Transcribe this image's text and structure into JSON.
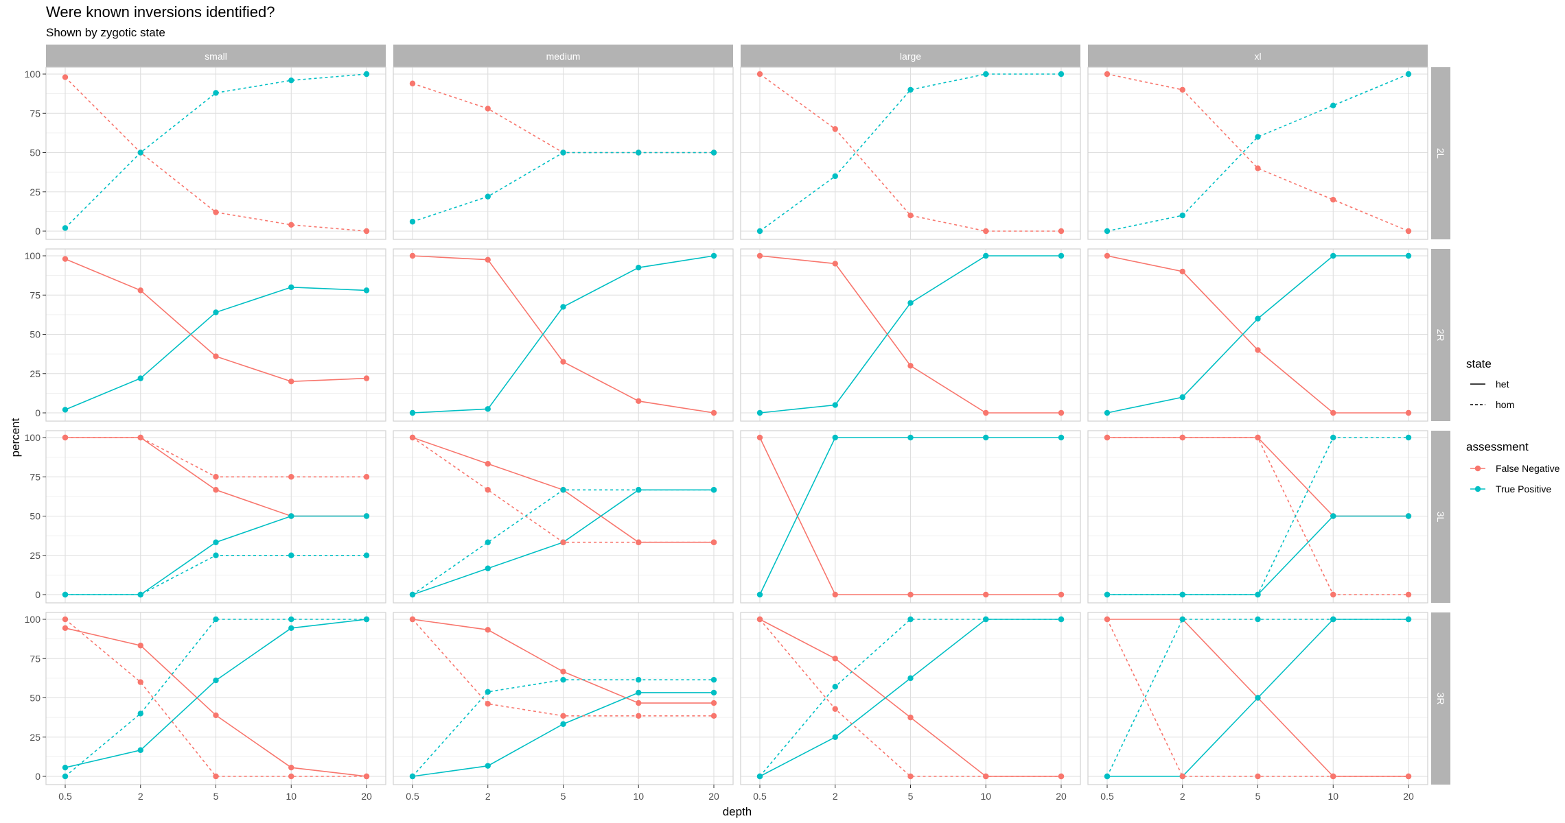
{
  "chart_data": {
    "type": "line",
    "title": "Were known inversions identified?",
    "subtitle": "Shown by zygotic state",
    "xlabel": "depth",
    "ylabel": "percent",
    "x": [
      "0.5",
      "2",
      "5",
      "10",
      "20"
    ],
    "y_ticks": [
      "0",
      "25",
      "50",
      "75",
      "100"
    ],
    "ylim": [
      0,
      100
    ],
    "columns": [
      "small",
      "medium",
      "large",
      "xl"
    ],
    "rows": [
      "2L",
      "2R",
      "3L",
      "3R"
    ],
    "legend": {
      "state": {
        "title": "state",
        "entries": [
          {
            "key": "het",
            "label": "het"
          },
          {
            "key": "hom",
            "label": "hom"
          }
        ]
      },
      "assessment": {
        "title": "assessment",
        "entries": [
          {
            "key": "fn",
            "label": "False Negative",
            "color": "#F8766D"
          },
          {
            "key": "tp",
            "label": "True Positive",
            "color": "#00BFC4"
          }
        ]
      }
    },
    "panels": [
      {
        "row": "2L",
        "col": "small",
        "series": [
          {
            "assessment": "fn",
            "state": "hom",
            "values": [
              98,
              50,
              12,
              4,
              0
            ]
          },
          {
            "assessment": "tp",
            "state": "hom",
            "values": [
              2,
              50,
              88,
              96,
              100
            ]
          }
        ]
      },
      {
        "row": "2L",
        "col": "medium",
        "series": [
          {
            "assessment": "fn",
            "state": "hom",
            "values": [
              94,
              78,
              50,
              50,
              50
            ]
          },
          {
            "assessment": "tp",
            "state": "hom",
            "values": [
              6,
              22,
              50,
              50,
              50
            ]
          }
        ]
      },
      {
        "row": "2L",
        "col": "large",
        "series": [
          {
            "assessment": "fn",
            "state": "hom",
            "values": [
              100,
              65,
              10,
              0,
              0
            ]
          },
          {
            "assessment": "tp",
            "state": "hom",
            "values": [
              0,
              35,
              90,
              100,
              100
            ]
          }
        ]
      },
      {
        "row": "2L",
        "col": "xl",
        "series": [
          {
            "assessment": "fn",
            "state": "hom",
            "values": [
              100,
              90,
              40,
              20,
              0
            ]
          },
          {
            "assessment": "tp",
            "state": "hom",
            "values": [
              0,
              10,
              60,
              80,
              100
            ]
          }
        ]
      },
      {
        "row": "2R",
        "col": "small",
        "series": [
          {
            "assessment": "fn",
            "state": "het",
            "values": [
              98,
              78,
              36,
              20,
              22
            ]
          },
          {
            "assessment": "tp",
            "state": "het",
            "values": [
              2,
              22,
              64,
              80,
              78
            ]
          }
        ]
      },
      {
        "row": "2R",
        "col": "medium",
        "series": [
          {
            "assessment": "fn",
            "state": "het",
            "values": [
              100,
              97.5,
              32.5,
              7.5,
              0
            ]
          },
          {
            "assessment": "tp",
            "state": "het",
            "values": [
              0,
              2.5,
              67.5,
              92.5,
              100
            ]
          }
        ]
      },
      {
        "row": "2R",
        "col": "large",
        "series": [
          {
            "assessment": "fn",
            "state": "het",
            "values": [
              100,
              95,
              30,
              0,
              0
            ]
          },
          {
            "assessment": "tp",
            "state": "het",
            "values": [
              0,
              5,
              70,
              100,
              100
            ]
          }
        ]
      },
      {
        "row": "2R",
        "col": "xl",
        "series": [
          {
            "assessment": "fn",
            "state": "het",
            "values": [
              100,
              90,
              40,
              0,
              0
            ]
          },
          {
            "assessment": "tp",
            "state": "het",
            "values": [
              0,
              10,
              60,
              100,
              100
            ]
          }
        ]
      },
      {
        "row": "3L",
        "col": "small",
        "series": [
          {
            "assessment": "fn",
            "state": "het",
            "values": [
              100,
              100,
              66.7,
              50,
              50
            ]
          },
          {
            "assessment": "tp",
            "state": "het",
            "values": [
              0,
              0,
              33.3,
              50,
              50
            ]
          },
          {
            "assessment": "fn",
            "state": "hom",
            "values": [
              100,
              100,
              75,
              75,
              75
            ]
          },
          {
            "assessment": "tp",
            "state": "hom",
            "values": [
              0,
              0,
              25,
              25,
              25
            ]
          }
        ]
      },
      {
        "row": "3L",
        "col": "medium",
        "series": [
          {
            "assessment": "fn",
            "state": "het",
            "values": [
              100,
              83.3,
              66.7,
              33.3,
              33.3
            ]
          },
          {
            "assessment": "tp",
            "state": "het",
            "values": [
              0,
              16.7,
              33.3,
              66.7,
              66.7
            ]
          },
          {
            "assessment": "fn",
            "state": "hom",
            "values": [
              100,
              66.7,
              33.3,
              33.3,
              33.3
            ]
          },
          {
            "assessment": "tp",
            "state": "hom",
            "values": [
              0,
              33.3,
              66.7,
              66.7,
              66.7
            ]
          }
        ]
      },
      {
        "row": "3L",
        "col": "large",
        "series": [
          {
            "assessment": "fn",
            "state": "het",
            "values": [
              100,
              0,
              0,
              0,
              0
            ]
          },
          {
            "assessment": "tp",
            "state": "het",
            "values": [
              0,
              100,
              100,
              100,
              100
            ]
          }
        ]
      },
      {
        "row": "3L",
        "col": "xl",
        "series": [
          {
            "assessment": "fn",
            "state": "het",
            "values": [
              100,
              100,
              100,
              50,
              50
            ]
          },
          {
            "assessment": "tp",
            "state": "het",
            "values": [
              0,
              0,
              0,
              50,
              50
            ]
          },
          {
            "assessment": "fn",
            "state": "hom",
            "values": [
              100,
              100,
              100,
              0,
              0
            ]
          },
          {
            "assessment": "tp",
            "state": "hom",
            "values": [
              0,
              0,
              0,
              100,
              100
            ]
          }
        ]
      },
      {
        "row": "3R",
        "col": "small",
        "series": [
          {
            "assessment": "fn",
            "state": "het",
            "values": [
              94.4,
              83.3,
              38.9,
              5.6,
              0
            ]
          },
          {
            "assessment": "tp",
            "state": "het",
            "values": [
              5.6,
              16.7,
              61.1,
              94.4,
              100
            ]
          },
          {
            "assessment": "fn",
            "state": "hom",
            "values": [
              100,
              60,
              0,
              0,
              0
            ]
          },
          {
            "assessment": "tp",
            "state": "hom",
            "values": [
              0,
              40,
              100,
              100,
              100
            ]
          }
        ]
      },
      {
        "row": "3R",
        "col": "medium",
        "series": [
          {
            "assessment": "fn",
            "state": "het",
            "values": [
              100,
              93.3,
              66.7,
              46.7,
              46.7
            ]
          },
          {
            "assessment": "tp",
            "state": "het",
            "values": [
              0,
              6.7,
              33.3,
              53.3,
              53.3
            ]
          },
          {
            "assessment": "fn",
            "state": "hom",
            "values": [
              100,
              46.2,
              38.5,
              38.5,
              38.5
            ]
          },
          {
            "assessment": "tp",
            "state": "hom",
            "values": [
              0,
              53.8,
              61.5,
              61.5,
              61.5
            ]
          }
        ]
      },
      {
        "row": "3R",
        "col": "large",
        "series": [
          {
            "assessment": "fn",
            "state": "het",
            "values": [
              100,
              75,
              37.5,
              0,
              0
            ]
          },
          {
            "assessment": "tp",
            "state": "het",
            "values": [
              0,
              25,
              62.5,
              100,
              100
            ]
          },
          {
            "assessment": "fn",
            "state": "hom",
            "values": [
              100,
              42.9,
              0,
              0,
              0
            ]
          },
          {
            "assessment": "tp",
            "state": "hom",
            "values": [
              0,
              57.1,
              100,
              100,
              100
            ]
          }
        ]
      },
      {
        "row": "3R",
        "col": "xl",
        "series": [
          {
            "assessment": "fn",
            "state": "het",
            "values": [
              100,
              100,
              50,
              0,
              0
            ]
          },
          {
            "assessment": "tp",
            "state": "het",
            "values": [
              0,
              0,
              50,
              100,
              100
            ]
          },
          {
            "assessment": "fn",
            "state": "hom",
            "values": [
              100,
              0,
              0,
              0,
              0
            ]
          },
          {
            "assessment": "tp",
            "state": "hom",
            "values": [
              0,
              100,
              100,
              100,
              100
            ]
          }
        ]
      }
    ]
  }
}
